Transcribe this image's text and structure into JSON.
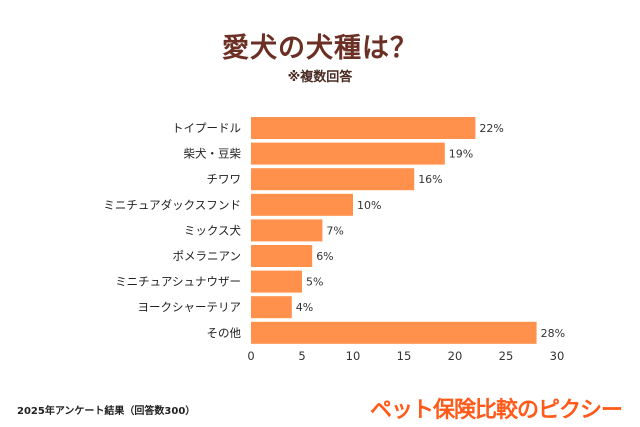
{
  "chart_data": {
    "type": "bar",
    "orientation": "horizontal",
    "title": "愛犬の犬種は？",
    "subtitle": "※複数回答",
    "categories": [
      "トイプードル",
      "柴犬・豆柴",
      "チワワ",
      "ミニチュアダックスフンド",
      "ミックス犬",
      "ポメラニアン",
      "ミニチュアシュナウザー",
      "ヨークシャーテリア",
      "その他"
    ],
    "values": [
      22,
      19,
      16,
      10,
      7,
      6,
      5,
      4,
      28
    ],
    "data_labels": [
      "22%",
      "19%",
      "16%",
      "10%",
      "7%",
      "6%",
      "5%",
      "4%",
      "28%"
    ],
    "xlim": [
      0,
      30
    ],
    "xticks": [
      0,
      5,
      10,
      15,
      20,
      25,
      30
    ],
    "grid": false,
    "bar_color": "#FF914D"
  },
  "footer": {
    "note": "2025年アンケート結果（回答数300）",
    "logo": "ペット保険比較のピクシー"
  },
  "colors": {
    "title": "#6b2f24",
    "logo": "#ff5a1a"
  }
}
